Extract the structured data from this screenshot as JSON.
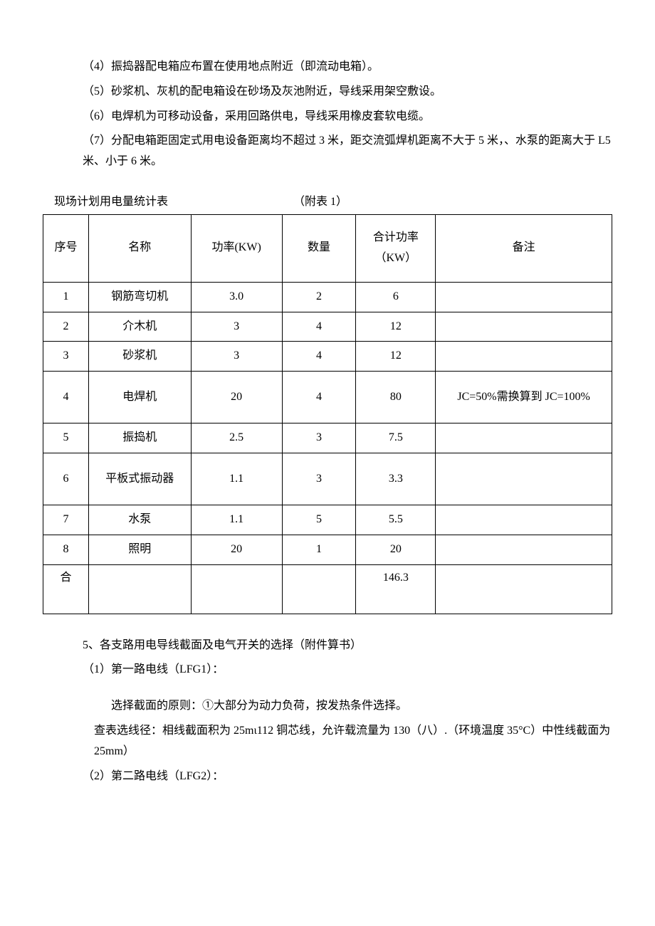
{
  "paragraphs": {
    "p4": "（4）振捣器配电箱应布置在使用地点附近（即流动电箱）。",
    "p5": "（5）砂浆机、灰机的配电箱设在砂场及灰池附近，导线采用架空敷设。",
    "p6": "（6）电焊机为可移动设备，采用回路供电，导线采用橡皮套软电缆。",
    "p7": "（7）分配电箱距固定式用电设备距离均不超过 3 米，距交流弧焊机距离不大于 5 米，、水泵的距离大于 L5 米、小于 6 米。"
  },
  "tableCaption": "现场计划用电量统计表",
  "tableCaptionAppendix": "（附表 1）",
  "headers": {
    "seq": "序号",
    "name": "名称",
    "power": "功率(KW)",
    "qty": "数量",
    "total": "合计功率（KW）",
    "remark": "备注"
  },
  "rows": [
    {
      "seq": "1",
      "name": "钢筋弯切机",
      "power": "3.0",
      "qty": "2",
      "total": "6",
      "remark": ""
    },
    {
      "seq": "2",
      "name": "介木机",
      "power": "3",
      "qty": "4",
      "total": "12",
      "remark": ""
    },
    {
      "seq": "3",
      "name": "砂浆机",
      "power": "3",
      "qty": "4",
      "total": "12",
      "remark": ""
    },
    {
      "seq": "4",
      "name": "电焊机",
      "power": "20",
      "qty": "4",
      "total": "80",
      "remark": "JC=50%需换算到 JC=100%"
    },
    {
      "seq": "5",
      "name": "振捣机",
      "power": "2.5",
      "qty": "3",
      "total": "7.5",
      "remark": ""
    },
    {
      "seq": "6",
      "name": "平板式振动器",
      "power": "1.1",
      "qty": "3",
      "total": "3.3",
      "remark": ""
    },
    {
      "seq": "7",
      "name": "水泵",
      "power": "1.1",
      "qty": "5",
      "total": "5.5",
      "remark": ""
    },
    {
      "seq": "8",
      "name": "照明",
      "power": "20",
      "qty": "1",
      "total": "20",
      "remark": ""
    }
  ],
  "sumRow": {
    "seq": "合",
    "name": "",
    "power": "",
    "qty": "",
    "total": "146.3",
    "remark": ""
  },
  "after": {
    "s5": "5、各支路用电导线截面及电气开关的选择（附件算书）",
    "s5_1": "（1）第一路电线（LFG1）：",
    "s5_1a": "选择截面的原则：①大部分为动力负荷，按发热条件选择。",
    "s5_1b": "查表选线径：相线截面积为 25mι112 铜芯线，允许载流量为 130（八）.（环境温度 35°C）中性线截面为 25mm）",
    "s5_2": "（2）第二路电线（LFG2）："
  }
}
